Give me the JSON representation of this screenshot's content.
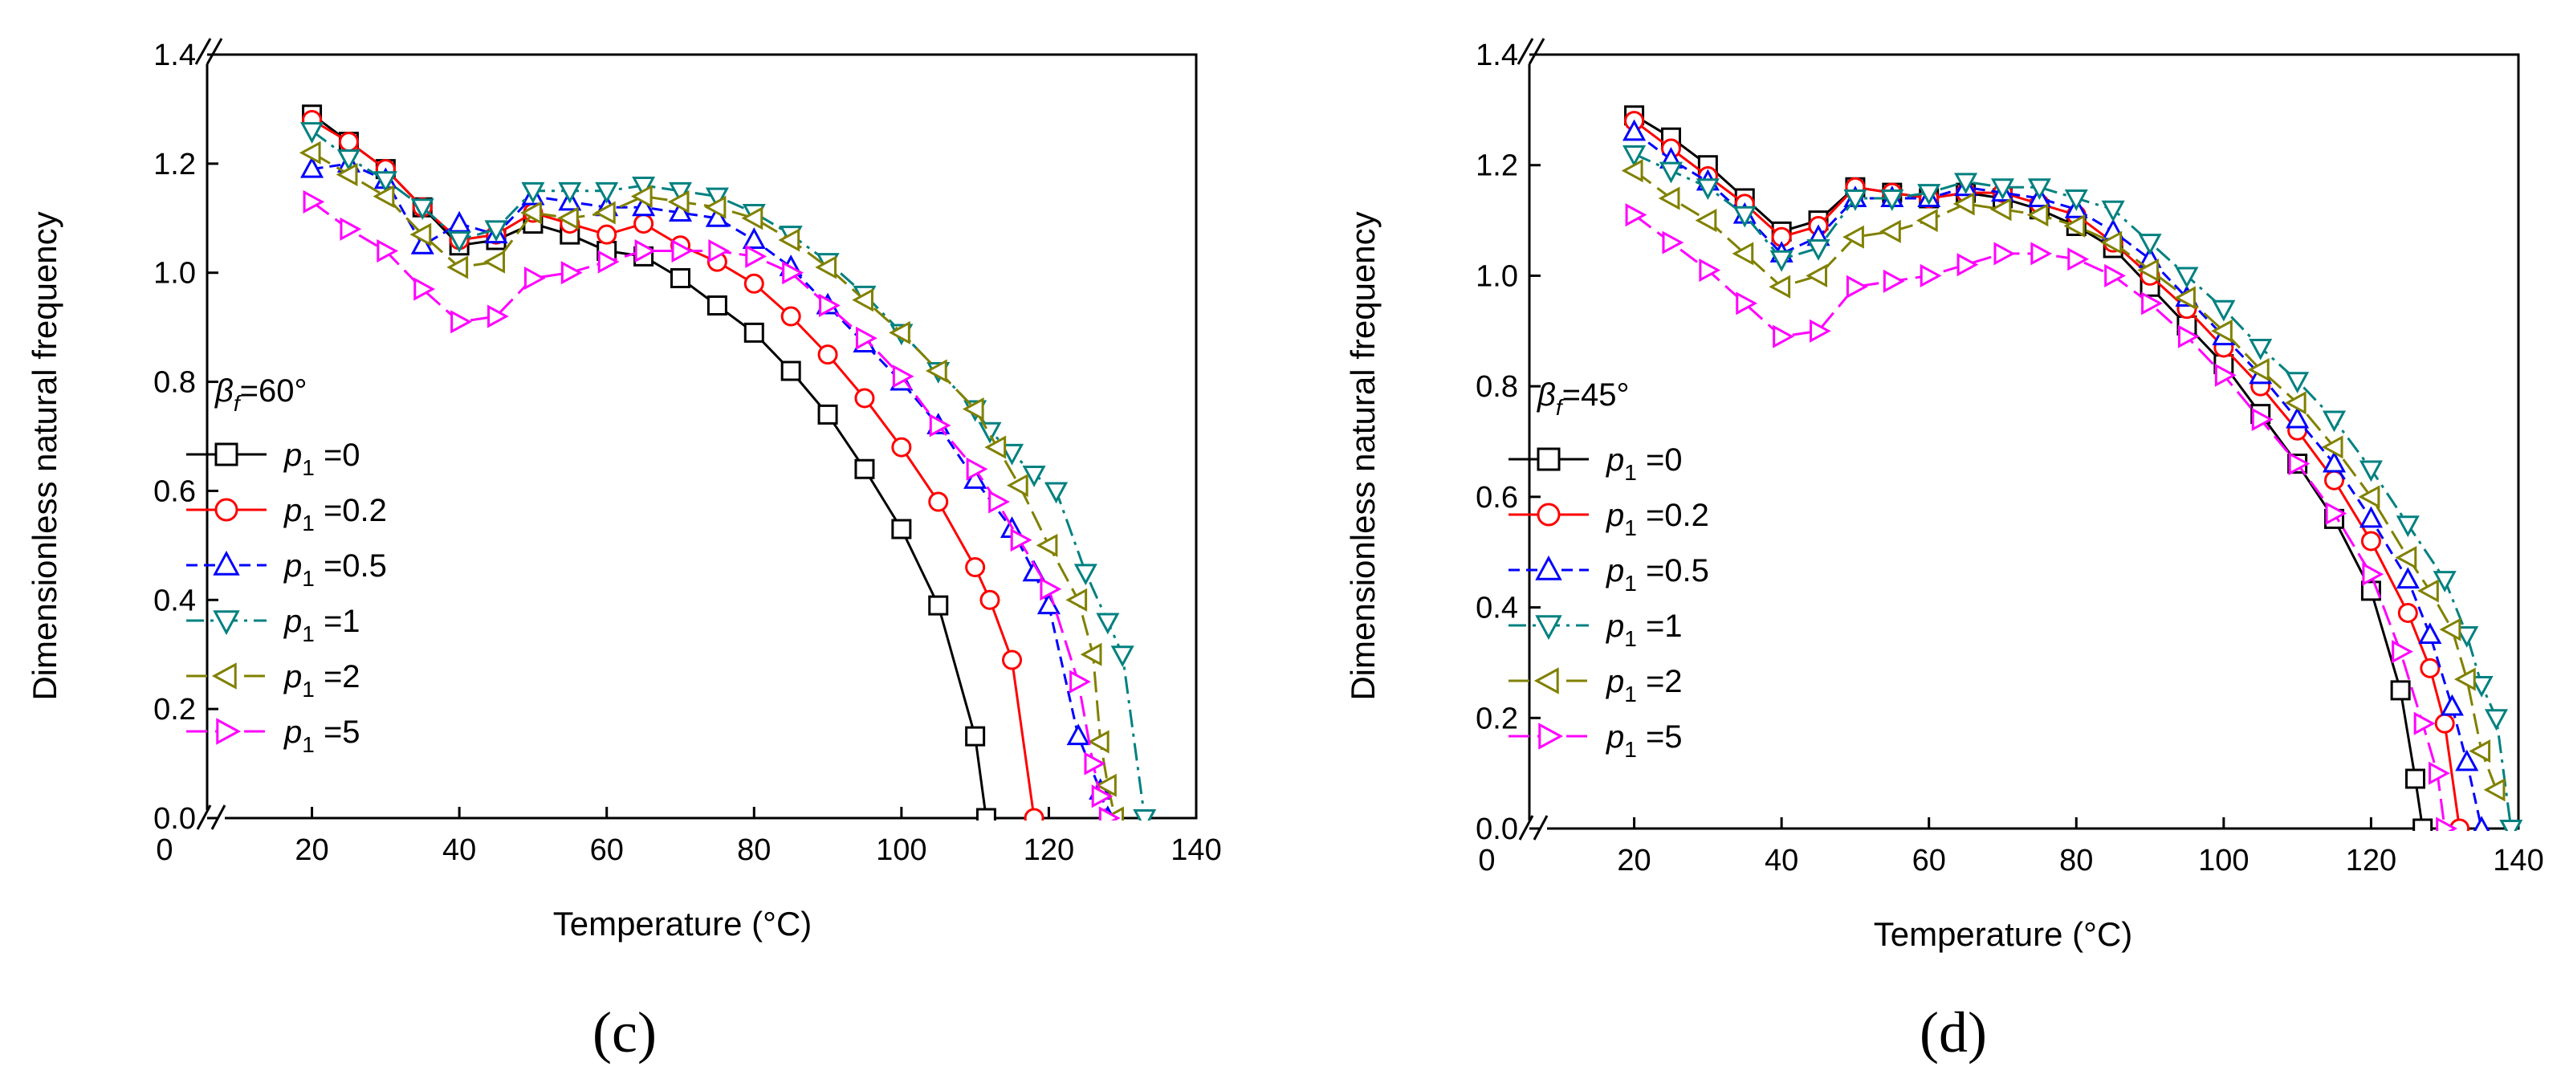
{
  "figure": {
    "panels": [
      {
        "label": "(c)",
        "legend_title": "βf=60°"
      },
      {
        "label": "(d)",
        "legend_title": "βf=45°"
      }
    ]
  },
  "chart_data": [
    {
      "type": "line",
      "title": "",
      "xlabel": "Temperature (°C)",
      "ylabel": "Dimensionless natural frequency",
      "xlim": [
        0,
        140
      ],
      "ylim": [
        0,
        1.4
      ],
      "xticks": [
        "0",
        "20",
        "40",
        "60",
        "80",
        "100",
        "120",
        "140"
      ],
      "yticks": [
        "0.0",
        "0.2",
        "0.4",
        "0.6",
        "0.8",
        "1.0",
        "1.2",
        "1.4"
      ],
      "axis_break": true,
      "grid": false,
      "legend_placement": "left-middle",
      "series": [
        {
          "name": "p1 =0",
          "color": "#000000",
          "marker": "square",
          "dash": "solid",
          "x": [
            20,
            25,
            30,
            35,
            40,
            45,
            50,
            55,
            60,
            65,
            70,
            75,
            80,
            85,
            90,
            95,
            100,
            105,
            110,
            111.5
          ],
          "y": [
            1.29,
            1.24,
            1.19,
            1.12,
            1.05,
            1.06,
            1.09,
            1.07,
            1.04,
            1.03,
            0.99,
            0.94,
            0.89,
            0.82,
            0.74,
            0.64,
            0.53,
            0.39,
            0.15,
            0.0
          ]
        },
        {
          "name": "p1 =0.2",
          "color": "#ff0000",
          "marker": "circle",
          "dash": "solid",
          "x": [
            20,
            25,
            30,
            35,
            40,
            45,
            50,
            55,
            60,
            65,
            70,
            75,
            80,
            85,
            90,
            95,
            100,
            105,
            110,
            112,
            115,
            118
          ],
          "y": [
            1.28,
            1.24,
            1.19,
            1.12,
            1.06,
            1.07,
            1.11,
            1.09,
            1.07,
            1.09,
            1.05,
            1.02,
            0.98,
            0.92,
            0.85,
            0.77,
            0.68,
            0.58,
            0.46,
            0.4,
            0.29,
            0.0
          ]
        },
        {
          "name": "p1 =0.5",
          "color": "#0000ff",
          "marker": "triangle-up",
          "dash": "dash",
          "x": [
            20,
            25,
            30,
            35,
            40,
            45,
            50,
            55,
            60,
            65,
            70,
            75,
            80,
            85,
            90,
            95,
            100,
            105,
            110,
            115,
            118,
            120,
            124,
            127,
            128
          ],
          "y": [
            1.19,
            1.2,
            1.17,
            1.05,
            1.09,
            1.07,
            1.14,
            1.13,
            1.12,
            1.12,
            1.11,
            1.1,
            1.06,
            1.01,
            0.94,
            0.87,
            0.8,
            0.72,
            0.62,
            0.53,
            0.45,
            0.39,
            0.15,
            0.05,
            0.0
          ]
        },
        {
          "name": "p1 =1",
          "color": "#008080",
          "marker": "triangle-down",
          "dash": "dashdot",
          "x": [
            20,
            25,
            30,
            35,
            40,
            45,
            50,
            55,
            60,
            65,
            70,
            75,
            80,
            85,
            90,
            95,
            100,
            105,
            110,
            112,
            115,
            118,
            121,
            125,
            128,
            130,
            133
          ],
          "y": [
            1.26,
            1.21,
            1.17,
            1.12,
            1.06,
            1.08,
            1.15,
            1.15,
            1.15,
            1.16,
            1.15,
            1.14,
            1.11,
            1.07,
            1.02,
            0.96,
            0.89,
            0.82,
            0.75,
            0.71,
            0.67,
            0.63,
            0.6,
            0.45,
            0.36,
            0.3,
            0.0
          ]
        },
        {
          "name": "p1 =2",
          "color": "#808000",
          "marker": "triangle-left",
          "dash": "longdash",
          "x": [
            20,
            25,
            30,
            35,
            40,
            45,
            50,
            55,
            60,
            65,
            70,
            75,
            80,
            85,
            90,
            95,
            100,
            105,
            110,
            113,
            116,
            120,
            124,
            126,
            127,
            128,
            129
          ],
          "y": [
            1.22,
            1.18,
            1.14,
            1.07,
            1.01,
            1.02,
            1.11,
            1.1,
            1.11,
            1.14,
            1.13,
            1.12,
            1.1,
            1.06,
            1.01,
            0.95,
            0.89,
            0.82,
            0.75,
            0.68,
            0.61,
            0.5,
            0.4,
            0.3,
            0.14,
            0.06,
            0.0
          ]
        },
        {
          "name": "p1 =5",
          "color": "#ff00ff",
          "marker": "triangle-right",
          "dash": "longdash",
          "x": [
            20,
            25,
            30,
            35,
            40,
            45,
            50,
            55,
            60,
            65,
            70,
            75,
            80,
            85,
            90,
            95,
            100,
            105,
            110,
            113,
            116,
            120,
            124,
            126,
            127,
            128
          ],
          "y": [
            1.13,
            1.08,
            1.04,
            0.97,
            0.91,
            0.92,
            0.99,
            1.0,
            1.02,
            1.04,
            1.04,
            1.04,
            1.03,
            1.0,
            0.94,
            0.88,
            0.81,
            0.72,
            0.64,
            0.58,
            0.51,
            0.42,
            0.25,
            0.1,
            0.04,
            0.0
          ]
        }
      ]
    },
    {
      "type": "line",
      "title": "",
      "xlabel": "Temperature (°C)",
      "ylabel": "Dimensionless natural frequency",
      "xlim": [
        0,
        140
      ],
      "ylim": [
        0,
        1.4
      ],
      "xticks": [
        "0",
        "20",
        "40",
        "60",
        "80",
        "100",
        "120",
        "140"
      ],
      "yticks": [
        "0.0",
        "0.2",
        "0.4",
        "0.6",
        "0.8",
        "1.0",
        "1.2",
        "1.4"
      ],
      "axis_break": true,
      "grid": false,
      "legend_placement": "left-middle",
      "series": [
        {
          "name": "p1 =0",
          "color": "#000000",
          "marker": "square",
          "dash": "solid",
          "x": [
            20,
            25,
            30,
            35,
            40,
            45,
            50,
            55,
            60,
            65,
            70,
            75,
            80,
            85,
            90,
            95,
            100,
            105,
            110,
            115,
            120,
            124,
            126,
            127
          ],
          "y": [
            1.29,
            1.25,
            1.2,
            1.14,
            1.08,
            1.1,
            1.16,
            1.15,
            1.14,
            1.15,
            1.14,
            1.12,
            1.09,
            1.05,
            0.98,
            0.91,
            0.84,
            0.75,
            0.66,
            0.56,
            0.43,
            0.25,
            0.09,
            0.0
          ]
        },
        {
          "name": "p1 =0.2",
          "color": "#ff0000",
          "marker": "circle",
          "dash": "solid",
          "x": [
            20,
            25,
            30,
            35,
            40,
            45,
            50,
            55,
            60,
            65,
            70,
            75,
            80,
            85,
            90,
            95,
            100,
            105,
            110,
            115,
            120,
            125,
            128,
            130,
            132
          ],
          "y": [
            1.28,
            1.23,
            1.18,
            1.13,
            1.07,
            1.09,
            1.16,
            1.15,
            1.14,
            1.15,
            1.15,
            1.13,
            1.11,
            1.06,
            1.0,
            0.94,
            0.87,
            0.8,
            0.72,
            0.63,
            0.52,
            0.39,
            0.29,
            0.19,
            0.0
          ]
        },
        {
          "name": "p1 =0.5",
          "color": "#0000ff",
          "marker": "triangle-up",
          "dash": "dash",
          "x": [
            20,
            25,
            30,
            35,
            40,
            45,
            50,
            55,
            60,
            65,
            70,
            75,
            80,
            85,
            90,
            95,
            100,
            105,
            110,
            115,
            120,
            125,
            128,
            131,
            133,
            135
          ],
          "y": [
            1.26,
            1.21,
            1.17,
            1.11,
            1.04,
            1.07,
            1.14,
            1.14,
            1.14,
            1.16,
            1.15,
            1.14,
            1.12,
            1.08,
            1.03,
            0.96,
            0.89,
            0.82,
            0.74,
            0.66,
            0.56,
            0.45,
            0.35,
            0.22,
            0.12,
            0.0
          ]
        },
        {
          "name": "p1 =1",
          "color": "#008080",
          "marker": "triangle-down",
          "dash": "dashdot",
          "x": [
            20,
            25,
            30,
            35,
            40,
            45,
            50,
            55,
            60,
            65,
            70,
            75,
            80,
            85,
            90,
            95,
            100,
            105,
            110,
            115,
            120,
            125,
            130,
            133,
            135,
            137,
            139
          ],
          "y": [
            1.22,
            1.19,
            1.16,
            1.11,
            1.03,
            1.05,
            1.14,
            1.14,
            1.15,
            1.17,
            1.16,
            1.16,
            1.14,
            1.12,
            1.06,
            1.0,
            0.94,
            0.87,
            0.81,
            0.74,
            0.65,
            0.55,
            0.45,
            0.35,
            0.26,
            0.2,
            0.0
          ]
        },
        {
          "name": "p1 =2",
          "color": "#808000",
          "marker": "triangle-left",
          "dash": "longdash",
          "x": [
            20,
            25,
            30,
            35,
            40,
            45,
            50,
            55,
            60,
            65,
            70,
            75,
            80,
            85,
            90,
            95,
            100,
            105,
            110,
            115,
            120,
            125,
            128,
            131,
            133,
            135,
            137
          ],
          "y": [
            1.19,
            1.14,
            1.1,
            1.04,
            0.98,
            1.0,
            1.07,
            1.08,
            1.1,
            1.13,
            1.12,
            1.11,
            1.09,
            1.06,
            1.01,
            0.96,
            0.9,
            0.83,
            0.77,
            0.69,
            0.6,
            0.49,
            0.43,
            0.36,
            0.27,
            0.14,
            0.07
          ]
        },
        {
          "name": "p1 =5",
          "color": "#ff00ff",
          "marker": "triangle-right",
          "dash": "longdash",
          "x": [
            20,
            25,
            30,
            35,
            40,
            45,
            50,
            55,
            60,
            65,
            70,
            75,
            80,
            85,
            90,
            95,
            100,
            105,
            110,
            115,
            120,
            124,
            127,
            129,
            130
          ],
          "y": [
            1.11,
            1.06,
            1.01,
            0.95,
            0.89,
            0.9,
            0.98,
            0.99,
            1.0,
            1.02,
            1.04,
            1.04,
            1.03,
            1.0,
            0.95,
            0.89,
            0.82,
            0.74,
            0.66,
            0.57,
            0.46,
            0.32,
            0.19,
            0.1,
            0.0
          ]
        }
      ]
    }
  ]
}
